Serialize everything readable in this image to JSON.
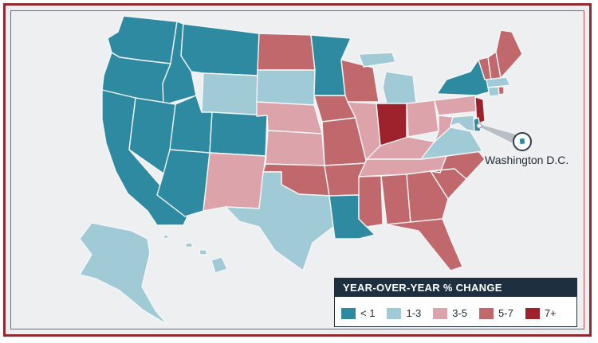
{
  "legend": {
    "title": "YEAR-OVER-YEAR % CHANGE",
    "items": [
      {
        "label": "< 1",
        "color": "#2e8aa0"
      },
      {
        "label": "1-3",
        "color": "#9fcad6"
      },
      {
        "label": "3-5",
        "color": "#dca4aa"
      },
      {
        "label": "5-7",
        "color": "#c0686c"
      },
      {
        "label": "7+",
        "color": "#9e222c"
      }
    ]
  },
  "callout": {
    "label": "Washington D.C."
  },
  "states": [
    {
      "id": "WA",
      "bin": 0
    },
    {
      "id": "OR",
      "bin": 0
    },
    {
      "id": "CA",
      "bin": 0
    },
    {
      "id": "ID",
      "bin": 0
    },
    {
      "id": "NV",
      "bin": 0
    },
    {
      "id": "MT",
      "bin": 0
    },
    {
      "id": "WY",
      "bin": 1
    },
    {
      "id": "UT",
      "bin": 0
    },
    {
      "id": "AZ",
      "bin": 0
    },
    {
      "id": "CO",
      "bin": 0
    },
    {
      "id": "NM",
      "bin": 2
    },
    {
      "id": "ND",
      "bin": 3
    },
    {
      "id": "SD",
      "bin": 1
    },
    {
      "id": "NE",
      "bin": 2
    },
    {
      "id": "KS",
      "bin": 2
    },
    {
      "id": "OK",
      "bin": 3
    },
    {
      "id": "TX",
      "bin": 1
    },
    {
      "id": "MN",
      "bin": 0
    },
    {
      "id": "IA",
      "bin": 3
    },
    {
      "id": "MO",
      "bin": 3
    },
    {
      "id": "AR",
      "bin": 3
    },
    {
      "id": "LA",
      "bin": 0
    },
    {
      "id": "WI",
      "bin": 3
    },
    {
      "id": "IL",
      "bin": 2
    },
    {
      "id": "MI",
      "bin": 1
    },
    {
      "id": "IN",
      "bin": 4
    },
    {
      "id": "OH",
      "bin": 2
    },
    {
      "id": "KY",
      "bin": 2
    },
    {
      "id": "TN",
      "bin": 2
    },
    {
      "id": "MS",
      "bin": 3
    },
    {
      "id": "AL",
      "bin": 3
    },
    {
      "id": "GA",
      "bin": 3
    },
    {
      "id": "FL",
      "bin": 3
    },
    {
      "id": "SC",
      "bin": 3
    },
    {
      "id": "NC",
      "bin": 3
    },
    {
      "id": "VA",
      "bin": 1
    },
    {
      "id": "WV",
      "bin": 2
    },
    {
      "id": "PA",
      "bin": 2
    },
    {
      "id": "NY",
      "bin": 0
    },
    {
      "id": "VT",
      "bin": 3
    },
    {
      "id": "NH",
      "bin": 3
    },
    {
      "id": "ME",
      "bin": 3
    },
    {
      "id": "MA",
      "bin": 1
    },
    {
      "id": "RI",
      "bin": 3
    },
    {
      "id": "CT",
      "bin": 1
    },
    {
      "id": "NJ",
      "bin": 4
    },
    {
      "id": "DE",
      "bin": 0
    },
    {
      "id": "MD",
      "bin": 1
    },
    {
      "id": "AK",
      "bin": 1
    },
    {
      "id": "HI",
      "bin": 1
    },
    {
      "id": "DC",
      "bin": 0
    }
  ]
}
